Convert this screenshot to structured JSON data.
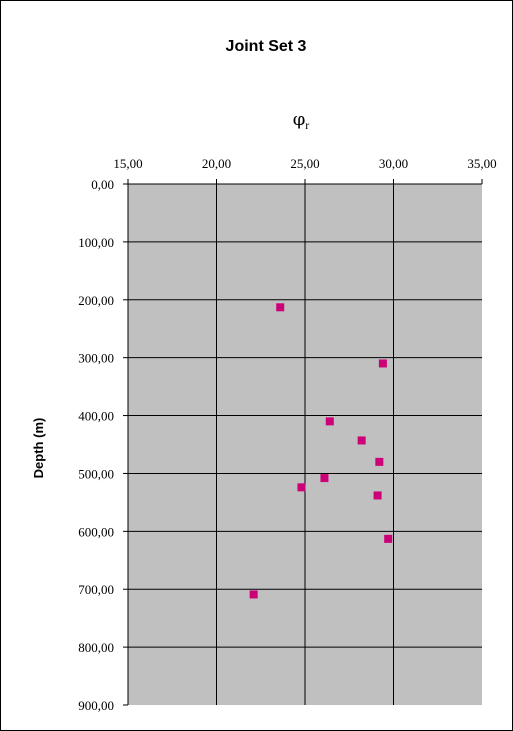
{
  "chart_data": {
    "type": "scatter",
    "title": "Joint Set 3",
    "xlabel": "φ",
    "xlabel_subscript": "r",
    "ylabel": "Depth (m)",
    "xlim": [
      15,
      35
    ],
    "ylim": [
      0,
      900
    ],
    "y_inverted": true,
    "x_axis_position": "top",
    "x_ticks": [
      "15,00",
      "20,00",
      "25,00",
      "30,00",
      "35,00"
    ],
    "x_tick_values": [
      15,
      20,
      25,
      30,
      35
    ],
    "y_ticks": [
      "0,00",
      "100,00",
      "200,00",
      "300,00",
      "400,00",
      "500,00",
      "600,00",
      "700,00",
      "800,00",
      "900,00"
    ],
    "y_tick_values": [
      0,
      100,
      200,
      300,
      400,
      500,
      600,
      700,
      800,
      900
    ],
    "grid": true,
    "plot_background": "#c0c0c0",
    "marker_color": "#cc0077",
    "marker_shape": "square",
    "points": [
      {
        "x": 23.6,
        "y": 213
      },
      {
        "x": 29.4,
        "y": 310
      },
      {
        "x": 26.4,
        "y": 410
      },
      {
        "x": 28.2,
        "y": 443
      },
      {
        "x": 29.2,
        "y": 480
      },
      {
        "x": 26.1,
        "y": 508
      },
      {
        "x": 24.8,
        "y": 524
      },
      {
        "x": 29.1,
        "y": 538
      },
      {
        "x": 29.7,
        "y": 613
      },
      {
        "x": 22.1,
        "y": 709
      }
    ]
  }
}
